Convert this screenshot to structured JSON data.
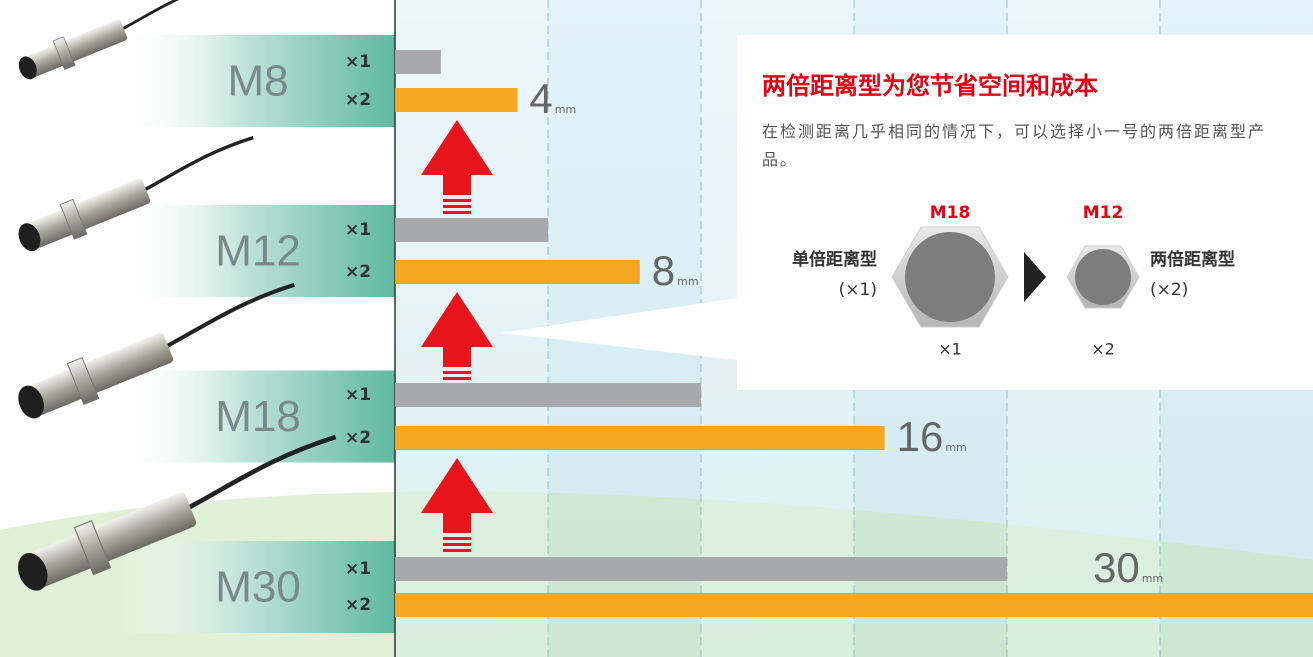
{
  "chart_data": {
    "type": "bar",
    "orientation": "horizontal",
    "categories": [
      "M8",
      "M12",
      "M18",
      "M30"
    ],
    "series": [
      {
        "name": "×1",
        "color": "#a7a9ac",
        "values": [
          1.5,
          5,
          10,
          20
        ]
      },
      {
        "name": "×2",
        "color": "#f5a623",
        "values": [
          4,
          8,
          16,
          30
        ],
        "value_labels": [
          "4",
          "8",
          "16",
          "30"
        ]
      }
    ],
    "unit": "mm",
    "xlim": [
      0,
      30
    ],
    "xticks": [
      5,
      10,
      15,
      20,
      25
    ],
    "grid": true,
    "callout": {
      "title": "两倍距离型为您节省空间和成本",
      "text": "在检测距离几乎相同的情况下，可以选择小一号的两倍距离型产品。",
      "large_label": "M18",
      "small_label": "M12",
      "left_name": "单倍距离型",
      "left_ratio": "(×1)",
      "right_name": "两倍距离型",
      "right_ratio": "(×2)",
      "large_caption": "×1",
      "small_caption": "×2"
    }
  }
}
